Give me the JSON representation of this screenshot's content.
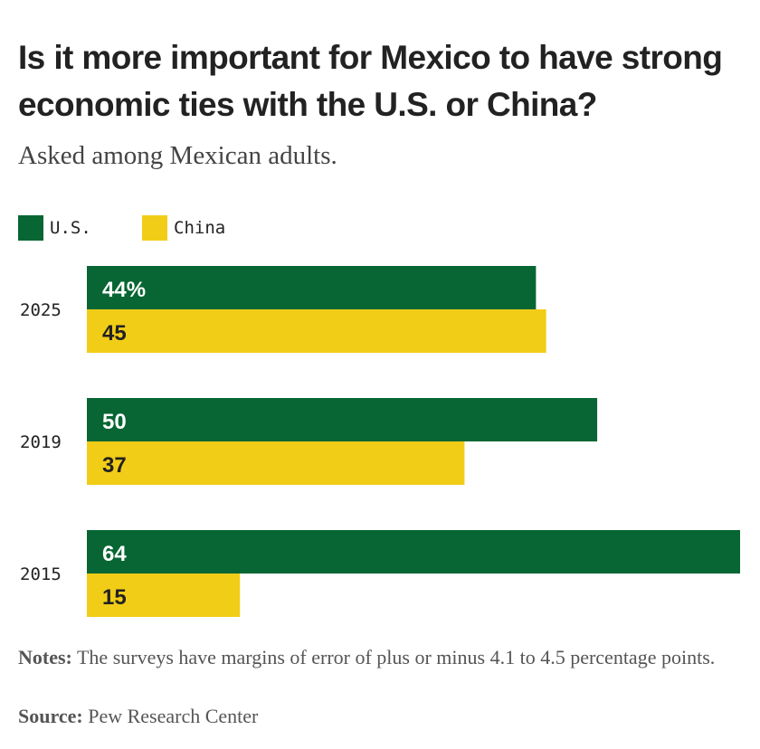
{
  "title": "Is it more important for Mexico to have strong economic ties with the U.S. or China?",
  "subtitle": "Asked among Mexican adults.",
  "legend": [
    {
      "label": "U.S.",
      "color": "#076633"
    },
    {
      "label": "China",
      "color": "#f2cd17"
    }
  ],
  "notes": {
    "label": "Notes:",
    "text": "The surveys have margins of error of plus or minus 4.1 to 4.5 percentage points."
  },
  "source": {
    "label": "Source:",
    "text": "Pew Research Center"
  },
  "chart_data": {
    "type": "bar",
    "orientation": "horizontal",
    "categories": [
      "2025",
      "2019",
      "2015"
    ],
    "series": [
      {
        "name": "U.S.",
        "values": [
          44,
          50,
          64
        ],
        "labels": [
          "44%",
          "50",
          "64"
        ],
        "color": "#076633",
        "label_color": "#ffffff"
      },
      {
        "name": "China",
        "values": [
          45,
          37,
          15
        ],
        "labels": [
          "45",
          "37",
          "15"
        ],
        "color": "#f2cd17",
        "label_color": "#222222"
      }
    ],
    "xlim": [
      0,
      64
    ],
    "grid": false,
    "legend": "top-left"
  }
}
